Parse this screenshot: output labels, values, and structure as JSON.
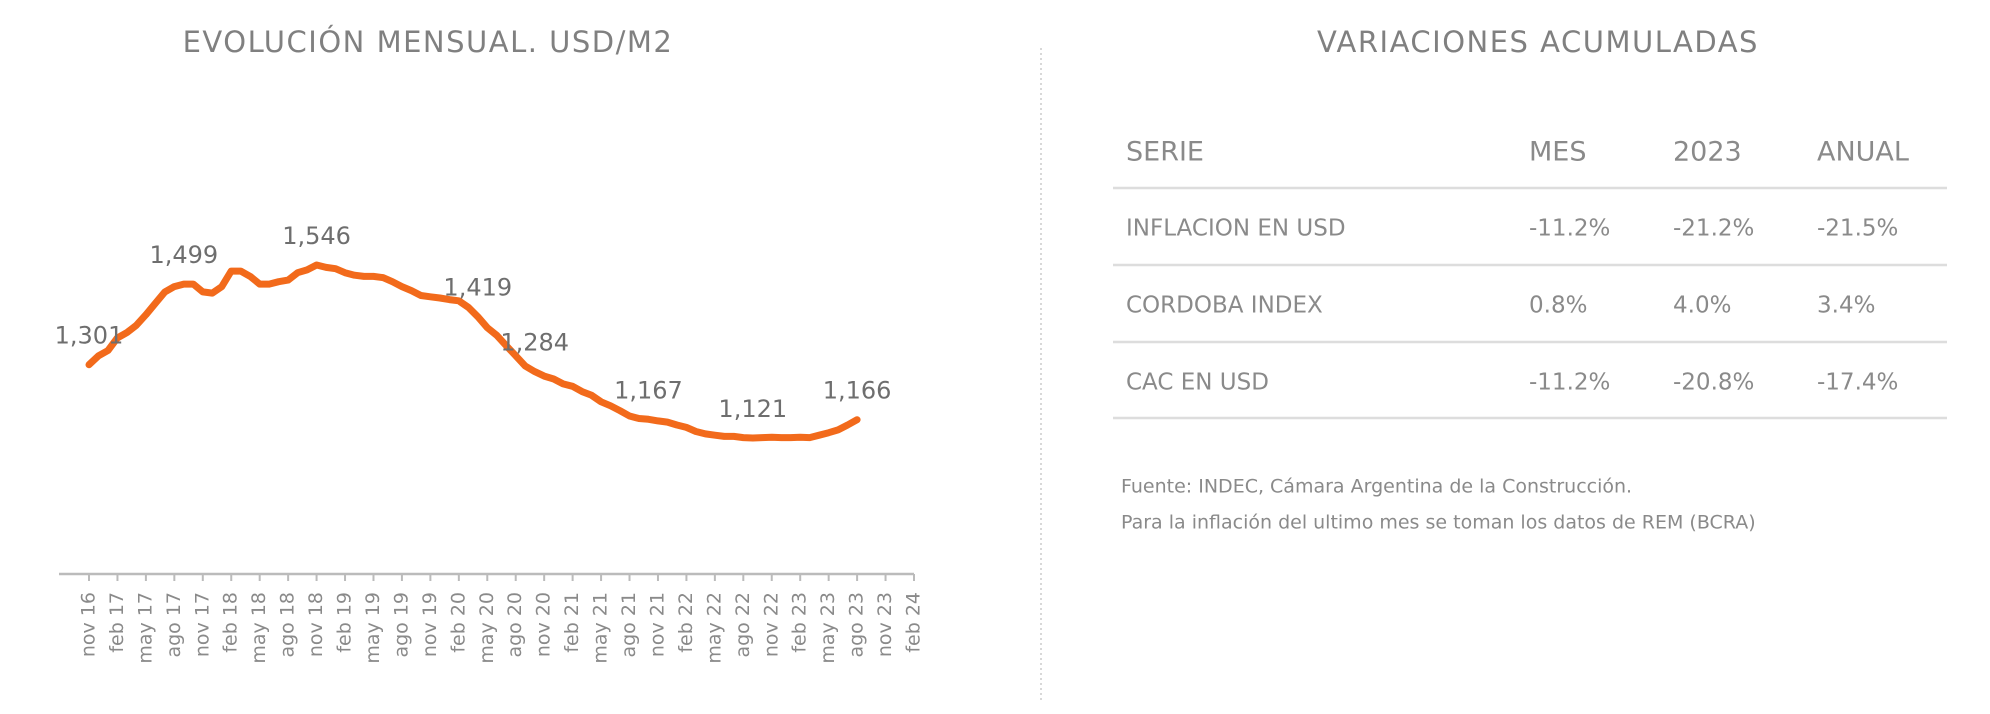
{
  "chart_data": {
    "type": "line",
    "title": "EVOLUCIÓN MENSUAL. USD/M2",
    "categories": [
      "nov 16",
      null,
      null,
      "feb 17",
      null,
      null,
      "may 17",
      null,
      null,
      "ago 17",
      null,
      null,
      "nov 17",
      null,
      null,
      "feb 18",
      null,
      null,
      "may 18",
      null,
      null,
      "ago 18",
      null,
      null,
      "nov 18",
      null,
      null,
      "feb 19",
      null,
      null,
      "may 19",
      null,
      null,
      "ago 19",
      null,
      null,
      "nov 19",
      null,
      null,
      "feb 20",
      null,
      null,
      "may 20",
      null,
      null,
      "ago 20",
      null,
      null,
      "nov 20",
      null,
      null,
      "feb 21",
      null,
      null,
      "may 21",
      null,
      null,
      "ago 21",
      null,
      null,
      "nov 21",
      null,
      null,
      "feb 22",
      null,
      null,
      "may 22",
      null,
      null,
      "ago 22",
      null,
      null,
      "nov 22",
      null,
      null,
      "feb 23",
      null,
      null,
      "may 23",
      null,
      null,
      "ago 23",
      null,
      null,
      "nov 23",
      null,
      null,
      "feb 24"
    ],
    "values": [
      1301,
      1323,
      1336,
      1367,
      1380,
      1398,
      1424,
      1452,
      1480,
      1493,
      1499,
      1499,
      1480,
      1477,
      1493,
      1531,
      1531,
      1518,
      1499,
      1499,
      1505,
      1509,
      1527,
      1534,
      1546,
      1540,
      1537,
      1527,
      1521,
      1518,
      1518,
      1515,
      1505,
      1493,
      1483,
      1471,
      1468,
      1465,
      1461,
      1458,
      1442,
      1419,
      1392,
      1373,
      1348,
      1323,
      1298,
      1284,
      1273,
      1266,
      1254,
      1248,
      1235,
      1226,
      1210,
      1200,
      1188,
      1175,
      1169,
      1167,
      1163,
      1160,
      1153,
      1147,
      1137,
      1131,
      1128,
      1125,
      1125,
      1122,
      1121,
      1122,
      1123,
      1122,
      1122,
      1123,
      1122,
      1128,
      1134,
      1141,
      1153,
      1166,
      null,
      null,
      null,
      null,
      null,
      null
    ],
    "value_labels": [
      "1,301",
      null,
      null,
      null,
      null,
      null,
      null,
      null,
      null,
      null,
      "1,499",
      null,
      null,
      null,
      null,
      null,
      null,
      null,
      null,
      null,
      null,
      null,
      null,
      null,
      "1,546",
      null,
      null,
      null,
      null,
      null,
      null,
      null,
      null,
      null,
      null,
      null,
      null,
      null,
      null,
      null,
      null,
      "1,419",
      null,
      null,
      null,
      null,
      null,
      "1,284",
      null,
      null,
      null,
      null,
      null,
      null,
      null,
      null,
      null,
      null,
      null,
      "1,167",
      null,
      null,
      null,
      null,
      null,
      null,
      null,
      null,
      null,
      null,
      "1,121",
      null,
      null,
      null,
      null,
      null,
      null,
      null,
      null,
      null,
      null,
      "1,166",
      null,
      null,
      null,
      null,
      null,
      null
    ],
    "color": "#f26a1b"
  },
  "table": {
    "title": "VARIACIONES ACUMULADAS",
    "header": [
      "SERIE",
      "MES",
      "2023",
      "ANUAL"
    ],
    "rows": [
      [
        "INFLACION EN USD",
        "-11.2%",
        "-21.2%",
        "-21.5%"
      ],
      [
        "CORDOBA INDEX",
        "0.8%",
        "4.0%",
        "3.4%"
      ],
      [
        "CAC EN USD",
        "-11.2%",
        "-20.8%",
        "-17.4%"
      ]
    ],
    "notes": [
      "Fuente: INDEC, Cámara Argentina de la Construcción.",
      "Para la inflación del ultimo mes se toman los datos de REM (BCRA)"
    ]
  }
}
